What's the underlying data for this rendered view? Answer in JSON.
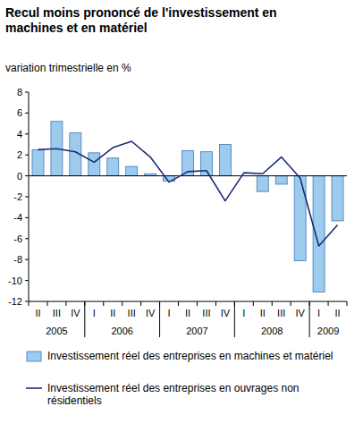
{
  "chart_data": {
    "type": "bar",
    "title": "Recul moins prononcé de l'investissement en machines et en matériel",
    "subtitle": "variation trimestrielle en %",
    "categories": [
      "II",
      "III",
      "IV",
      "I",
      "II",
      "III",
      "IV",
      "I",
      "II",
      "III",
      "IV",
      "I",
      "II",
      "III",
      "IV",
      "I",
      "II"
    ],
    "x_groups": [
      {
        "label": "2005",
        "count": 3
      },
      {
        "label": "2006",
        "count": 4
      },
      {
        "label": "2007",
        "count": 4
      },
      {
        "label": "2008",
        "count": 4
      },
      {
        "label": "2009",
        "count": 2
      }
    ],
    "series": [
      {
        "name": "Investissement réel des entreprises en machines et matériel",
        "type": "bar",
        "color": "#9ccbee",
        "values": [
          2.5,
          5.2,
          4.1,
          2.2,
          1.7,
          0.9,
          0.2,
          -0.5,
          2.4,
          2.3,
          3.0,
          0.0,
          -1.5,
          -0.8,
          -8.1,
          -11.1,
          -4.3
        ]
      },
      {
        "name": "Investissement réel des entreprises en ouvrages non résidentiels",
        "type": "line",
        "color": "#1c2a78",
        "values": [
          2.5,
          2.6,
          2.3,
          1.3,
          2.7,
          3.3,
          1.8,
          -0.6,
          0.4,
          0.5,
          -2.4,
          0.3,
          0.2,
          1.8,
          -0.2,
          -6.7,
          -4.7
        ]
      }
    ],
    "ylim": [
      -12,
      8
    ],
    "yticks": [
      -12,
      -10,
      -8,
      -6,
      -4,
      -2,
      0,
      2,
      4,
      6,
      8
    ],
    "grid": false
  }
}
